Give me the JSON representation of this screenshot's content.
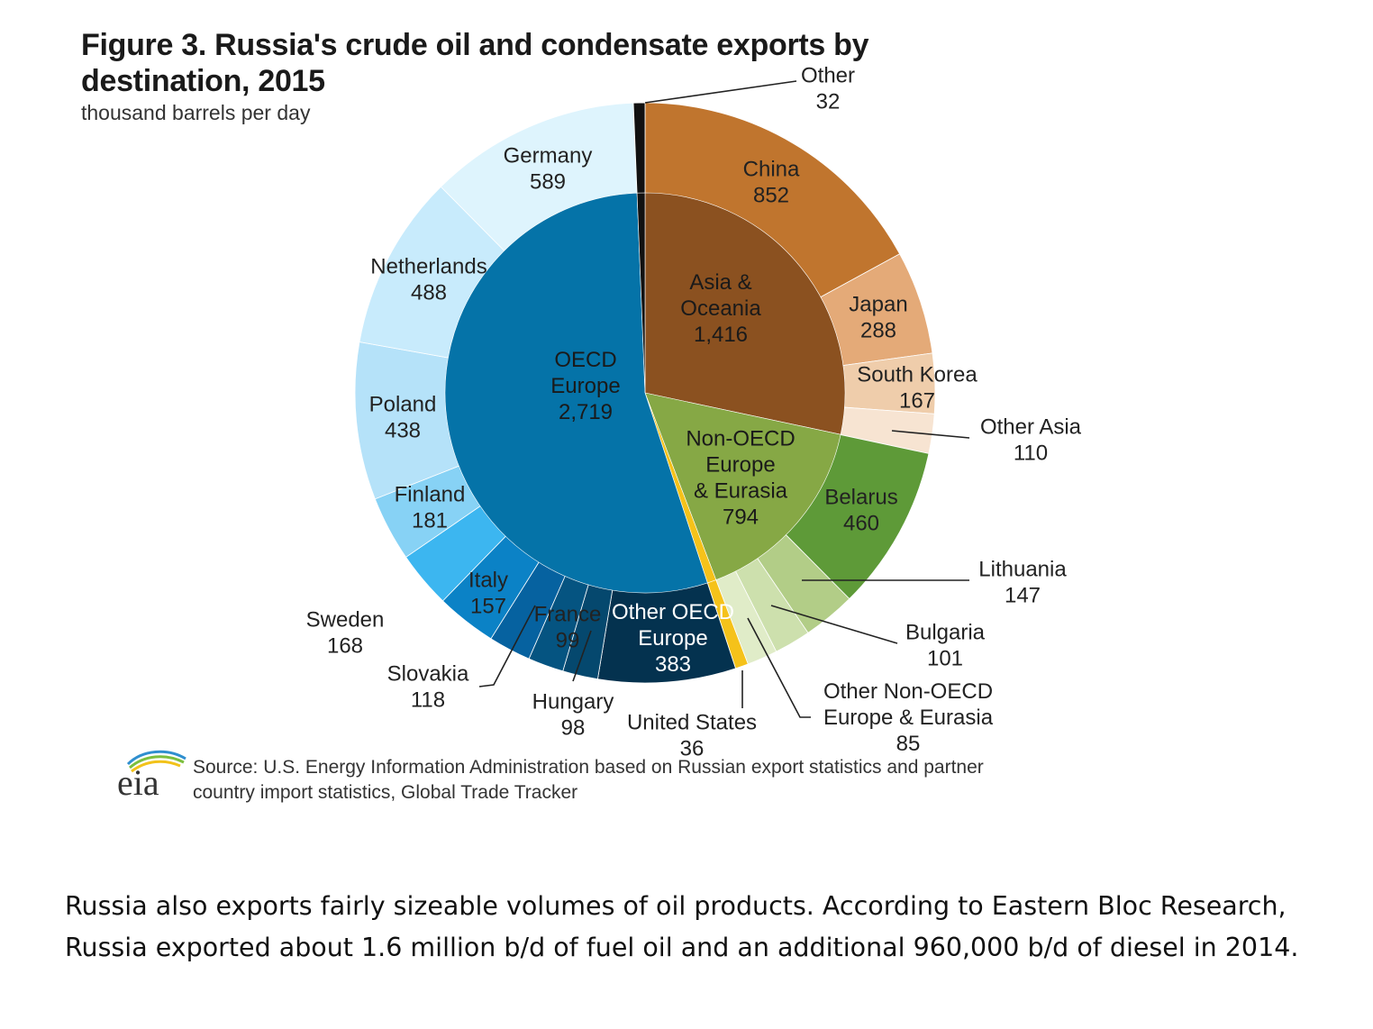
{
  "chart_data": {
    "type": "pie",
    "subtype": "nested-donut",
    "title": "Figure 3. Russia's crude oil and condensate exports by destination, 2015",
    "units": "thousand barrels per day",
    "start": "top, clockwise",
    "inner": [
      {
        "name": "Asia &\nOceania",
        "value_label": "1,416",
        "value": 1416,
        "color": "#8b5120"
      },
      {
        "name": "Non-OECD\nEurope\n& Eurasia",
        "value_label": "794",
        "value": 794,
        "color": "#86a845"
      },
      {
        "name": "United States",
        "value_label": "36",
        "value": 36,
        "color": "#f5c21a"
      },
      {
        "name": "OECD\nEurope",
        "value_label": "2,719",
        "value": 2719,
        "color": "#0573a8"
      },
      {
        "name": "Other",
        "value_label": "32",
        "value": 32,
        "color": "#111111"
      }
    ],
    "outer": [
      {
        "name": "China",
        "value": 852,
        "color": "#c0752e",
        "group": "Asia & Oceania"
      },
      {
        "name": "Japan",
        "value": 288,
        "color": "#e4aa78",
        "group": "Asia & Oceania"
      },
      {
        "name": "South Korea",
        "value": 167,
        "color": "#efcdab",
        "group": "Asia & Oceania"
      },
      {
        "name": "Other Asia",
        "value": 110,
        "color": "#f7e4d2",
        "group": "Asia & Oceania"
      },
      {
        "name": "Belarus",
        "value": 460,
        "color": "#5e9a38",
        "group": "Non-OECD Europe & Eurasia"
      },
      {
        "name": "Lithuania",
        "value": 147,
        "color": "#b2cd87",
        "group": "Non-OECD Europe & Eurasia"
      },
      {
        "name": "Bulgaria",
        "value": 101,
        "color": "#cde0ad",
        "group": "Non-OECD Europe & Eurasia"
      },
      {
        "name": "Other Non-OECD\nEurope & Eurasia",
        "value": 85,
        "color": "#e0ecc8",
        "group": "Non-OECD Europe & Eurasia"
      },
      {
        "name": "United States",
        "value": 36,
        "color": "#f5c21a",
        "group": "United States"
      },
      {
        "name": "Other OECD\nEurope",
        "value": 383,
        "color": "#04324f",
        "group": "OECD Europe"
      },
      {
        "name": "Hungary",
        "value": 98,
        "color": "#05486e",
        "group": "OECD Europe"
      },
      {
        "name": "France",
        "value": 99,
        "color": "#055481",
        "group": "OECD Europe"
      },
      {
        "name": "Slovakia",
        "value": 118,
        "color": "#0662a0",
        "group": "OECD Europe"
      },
      {
        "name": "Sweden",
        "value": 168,
        "color": "#0b82c6",
        "group": "OECD Europe"
      },
      {
        "name": "Italy",
        "value": 157,
        "color": "#3cb6f0",
        "group": "OECD Europe"
      },
      {
        "name": "Finland",
        "value": 181,
        "color": "#87d2f5",
        "group": "OECD Europe"
      },
      {
        "name": "Poland",
        "value": 438,
        "color": "#b5e2f9",
        "group": "OECD Europe"
      },
      {
        "name": "Netherlands",
        "value": 488,
        "color": "#c8ebfc",
        "group": "OECD Europe"
      },
      {
        "name": "Germany",
        "value": 589,
        "color": "#def4fd",
        "group": "OECD Europe"
      },
      {
        "name": "Other",
        "value": 32,
        "color": "#111111",
        "group": "Other"
      }
    ]
  },
  "source": {
    "logo_text": "eia",
    "line1": "Source: U.S. Energy Information Administration based on Russian export statistics and partner",
    "line2": "country import statistics, Global Trade Tracker"
  },
  "caption": {
    "line1": "Russia also exports fairly sizeable volumes of oil products. According to Eastern Bloc Research,",
    "line2": "Russia exported about 1.6 million b/d of fuel oil and an additional 960,000 b/d of diesel in 2014."
  }
}
